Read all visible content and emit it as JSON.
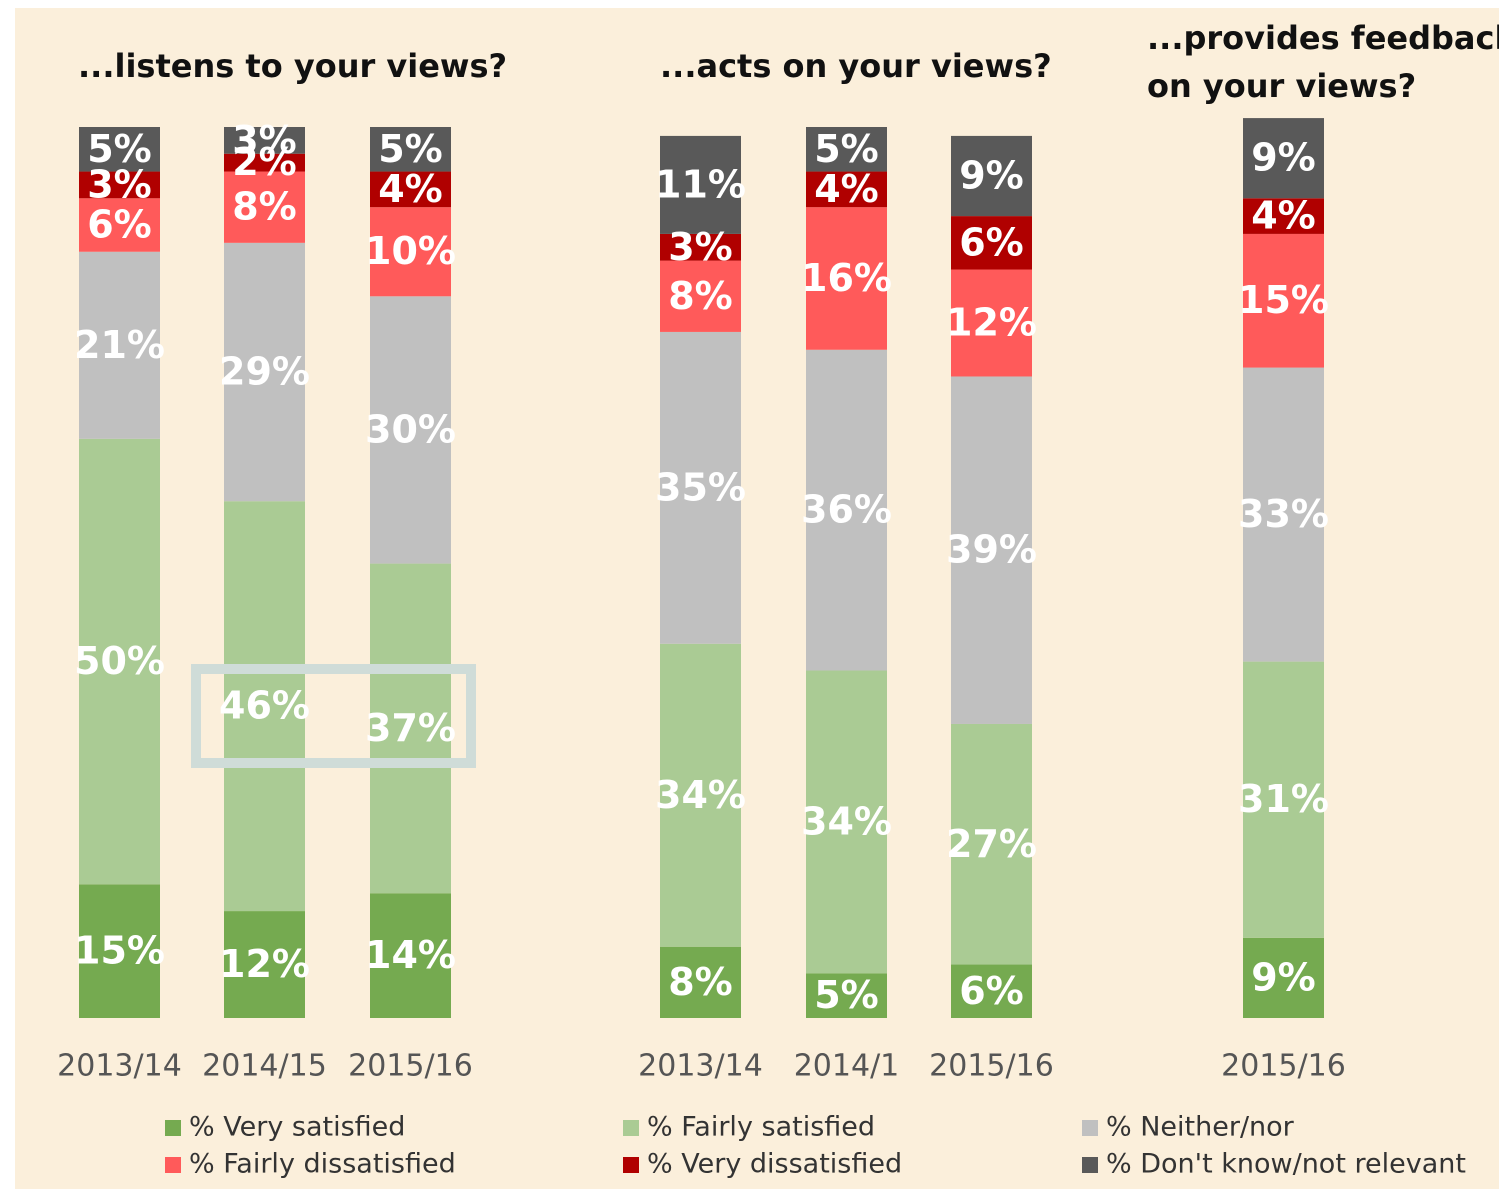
{
  "chart_data": {
    "type": "bar",
    "stacked": true,
    "series": [
      {
        "name": "% Very satisfied",
        "color": "#75aa50"
      },
      {
        "name": "% Fairly satisfied",
        "color": "#aacb94"
      },
      {
        "name": "% Neither/nor",
        "color": "#c0c0c0"
      },
      {
        "name": "% Fairly dissatisfied",
        "color": "#ff5a5a"
      },
      {
        "name": "% Very dissatisfied",
        "color": "#b00000"
      },
      {
        "name": "% Don't know/not relevant",
        "color": "#595959"
      }
    ],
    "ylim": [
      0,
      100
    ],
    "panels": [
      {
        "title": [
          "...listens to your views?"
        ],
        "categories": [
          "2013/14",
          "2014/15",
          "2015/16"
        ],
        "series": [
          {
            "values": [
              15,
              12,
              14
            ],
            "value_labels": [
              "15%",
              "12%",
              "14%"
            ]
          },
          {
            "values": [
              50,
              46,
              37
            ],
            "value_labels": [
              "50%",
              "46%",
              "37%"
            ]
          },
          {
            "values": [
              21,
              29,
              30
            ],
            "value_labels": [
              "21%",
              "29%",
              "30%"
            ]
          },
          {
            "values": [
              6,
              8,
              10
            ],
            "value_labels": [
              "6%",
              "8%",
              "10%"
            ]
          },
          {
            "values": [
              3,
              2,
              4
            ],
            "value_labels": [
              "3%",
              "2%",
              "4%"
            ]
          },
          {
            "values": [
              5,
              3,
              5
            ],
            "value_labels": [
              "5%",
              "3%",
              "5%"
            ]
          }
        ]
      },
      {
        "title": [
          "...acts on your views?"
        ],
        "categories": [
          "2013/14",
          "2014/1",
          "2015/16"
        ],
        "series": [
          {
            "values": [
              8,
              5,
              6
            ],
            "value_labels": [
              "8%",
              "5%",
              "6%"
            ]
          },
          {
            "values": [
              34,
              34,
              27
            ],
            "value_labels": [
              "34%",
              "34%",
              "27%"
            ]
          },
          {
            "values": [
              35,
              36,
              39
            ],
            "value_labels": [
              "35%",
              "36%",
              "39%"
            ]
          },
          {
            "values": [
              8,
              16,
              12
            ],
            "value_labels": [
              "8%",
              "16%",
              "12%"
            ]
          },
          {
            "values": [
              3,
              4,
              6
            ],
            "value_labels": [
              "3%",
              "4%",
              "6%"
            ]
          },
          {
            "values": [
              11,
              5,
              9
            ],
            "value_labels": [
              "11%",
              "5%",
              "9%"
            ]
          }
        ]
      },
      {
        "title": [
          "...provides feedback",
          "on your views?"
        ],
        "categories": [
          "2015/16"
        ],
        "series": [
          {
            "values": [
              9
            ],
            "value_labels": [
              "9%"
            ]
          },
          {
            "values": [
              31
            ],
            "value_labels": [
              "31%"
            ]
          },
          {
            "values": [
              33
            ],
            "value_labels": [
              "33%"
            ]
          },
          {
            "values": [
              15
            ],
            "value_labels": [
              "15%"
            ]
          },
          {
            "values": [
              4
            ],
            "value_labels": [
              "4%"
            ]
          },
          {
            "values": [
              9
            ],
            "value_labels": [
              "9%"
            ]
          }
        ]
      }
    ]
  }
}
